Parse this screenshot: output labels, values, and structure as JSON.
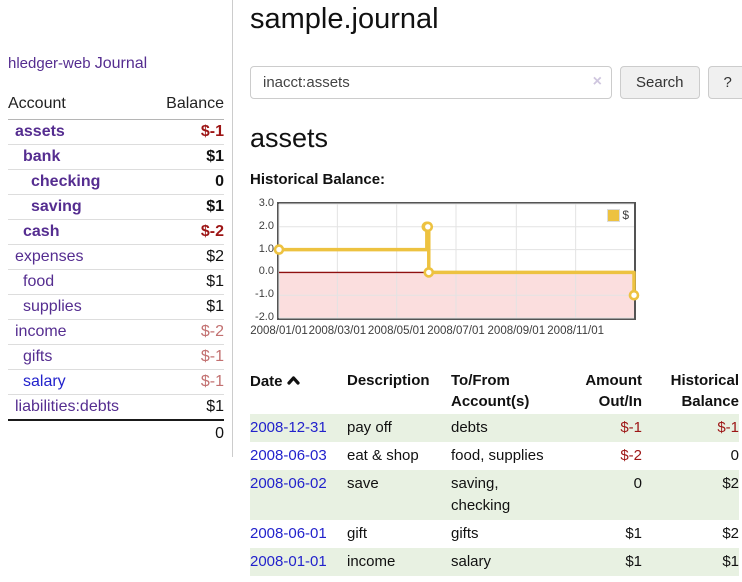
{
  "sidebar": {
    "app_title": "hledger-web",
    "journal_label": "Journal",
    "table": {
      "account_header": "Account",
      "balance_header": "Balance"
    },
    "accounts": [
      {
        "name": "assets",
        "balance": "$-1"
      },
      {
        "name": "bank",
        "balance": "$1"
      },
      {
        "name": "checking",
        "balance": "0"
      },
      {
        "name": "saving",
        "balance": "$1"
      },
      {
        "name": "cash",
        "balance": "$-2"
      },
      {
        "name": "expenses",
        "balance": "$2"
      },
      {
        "name": "food",
        "balance": "$1"
      },
      {
        "name": "supplies",
        "balance": "$1"
      },
      {
        "name": "income",
        "balance": "$-2"
      },
      {
        "name": "gifts",
        "balance": "$-1"
      },
      {
        "name": "salary",
        "balance": "$-1"
      },
      {
        "name": "liabilities:debts",
        "balance": "$1"
      }
    ],
    "total": "0"
  },
  "main": {
    "title": "sample.journal",
    "search": {
      "value": "inacct:assets",
      "clear_label": "×",
      "button_label": "Search",
      "help_label": "?"
    },
    "account_heading": "assets",
    "chart_heading": "Historical Balance:",
    "register": {
      "headers": {
        "date": "Date",
        "description": "Description",
        "tofrom": "To/From Account(s)",
        "amount": "Amount Out/In",
        "balance": "Historical Balance"
      },
      "rows": [
        {
          "date": "2008-12-31",
          "description": "pay off",
          "accounts": "debts",
          "amount": "$-1",
          "balance": "$-1"
        },
        {
          "date": "2008-06-03",
          "description": "eat & shop",
          "accounts": "food, supplies",
          "amount": "$-2",
          "balance": "0"
        },
        {
          "date": "2008-06-02",
          "description": "save",
          "accounts": "saving, checking",
          "amount": "0",
          "balance": "$2"
        },
        {
          "date": "2008-06-01",
          "description": "gift",
          "accounts": "gifts",
          "amount": "$1",
          "balance": "$2"
        },
        {
          "date": "2008-01-01",
          "description": "income",
          "accounts": "salary",
          "amount": "$1",
          "balance": "$1"
        }
      ]
    }
  },
  "chart_data": {
    "type": "line",
    "title": "Historical Balance:",
    "step": true,
    "legend": {
      "label": "$",
      "position": "top-right"
    },
    "xrange": [
      "2008-01-01",
      "2008-12-31"
    ],
    "ylim": [
      -2,
      3
    ],
    "series": [
      {
        "name": "$",
        "points": [
          [
            "2008-01-01",
            1
          ],
          [
            "2008-06-01",
            2
          ],
          [
            "2008-06-02",
            2
          ],
          [
            "2008-06-03",
            0
          ],
          [
            "2008-12-31",
            -1
          ]
        ]
      }
    ],
    "xticks": [
      {
        "date": "2008-01-01",
        "label": "2008/01/01"
      },
      {
        "date": "2008-03-01",
        "label": "2008/03/01"
      },
      {
        "date": "2008-05-01",
        "label": "2008/05/01"
      },
      {
        "date": "2008-07-01",
        "label": "2008/07/01"
      },
      {
        "date": "2008-09-01",
        "label": "2008/09/01"
      },
      {
        "date": "2008-11-01",
        "label": "2008/11/01"
      }
    ],
    "yticks": [
      {
        "value": 3,
        "label": "3.0"
      },
      {
        "value": 2,
        "label": "2.0"
      },
      {
        "value": 1,
        "label": "1.0"
      },
      {
        "value": 0,
        "label": "0.0"
      },
      {
        "value": -1,
        "label": "-1.0"
      },
      {
        "value": -2,
        "label": "-2.0"
      }
    ],
    "colors": {
      "series": "#edc240",
      "marker_fill": "#ffffff",
      "negative_fill": "#fbdede",
      "zero_line": "#8f1010",
      "grid": "#e3e3e3",
      "border": "#545454"
    }
  }
}
